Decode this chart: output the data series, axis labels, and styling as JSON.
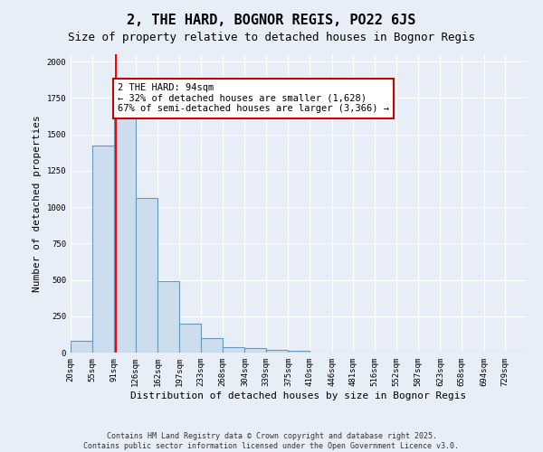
{
  "title": "2, THE HARD, BOGNOR REGIS, PO22 6JS",
  "subtitle": "Size of property relative to detached houses in Bognor Regis",
  "xlabel": "Distribution of detached houses by size in Bognor Regis",
  "ylabel": "Number of detached properties",
  "bar_edges": [
    20,
    55,
    91,
    126,
    162,
    197,
    233,
    268,
    304,
    339,
    375,
    410,
    446,
    481,
    516,
    552,
    587,
    623,
    658,
    694,
    729
  ],
  "bar_heights": [
    80,
    1420,
    1620,
    1060,
    490,
    200,
    100,
    40,
    30,
    20,
    15,
    0,
    0,
    0,
    0,
    0,
    0,
    0,
    0,
    0,
    0
  ],
  "bar_color": "#ccdded",
  "bar_edge_color": "#6699bb",
  "red_line_x": 94,
  "ylim": [
    0,
    2050
  ],
  "xlim_min": 20,
  "xlim_max": 764,
  "annotation_text": "2 THE HARD: 94sqm\n← 32% of detached houses are smaller (1,628)\n67% of semi-detached houses are larger (3,366) →",
  "annotation_box_color": "#ffffff",
  "annotation_box_edge_color": "#cc0000",
  "tick_labels": [
    "20sqm",
    "55sqm",
    "91sqm",
    "126sqm",
    "162sqm",
    "197sqm",
    "233sqm",
    "268sqm",
    "304sqm",
    "339sqm",
    "375sqm",
    "410sqm",
    "446sqm",
    "481sqm",
    "516sqm",
    "552sqm",
    "587sqm",
    "623sqm",
    "658sqm",
    "694sqm",
    "729sqm"
  ],
  "footer_line1": "Contains HM Land Registry data © Crown copyright and database right 2025.",
  "footer_line2": "Contains public sector information licensed under the Open Government Licence v3.0.",
  "bg_color": "#e8eef8",
  "grid_color": "#ffffff",
  "title_fontsize": 11,
  "subtitle_fontsize": 9,
  "axis_label_fontsize": 8,
  "tick_fontsize": 6.5,
  "annotation_fontsize": 7.5,
  "footer_fontsize": 6
}
